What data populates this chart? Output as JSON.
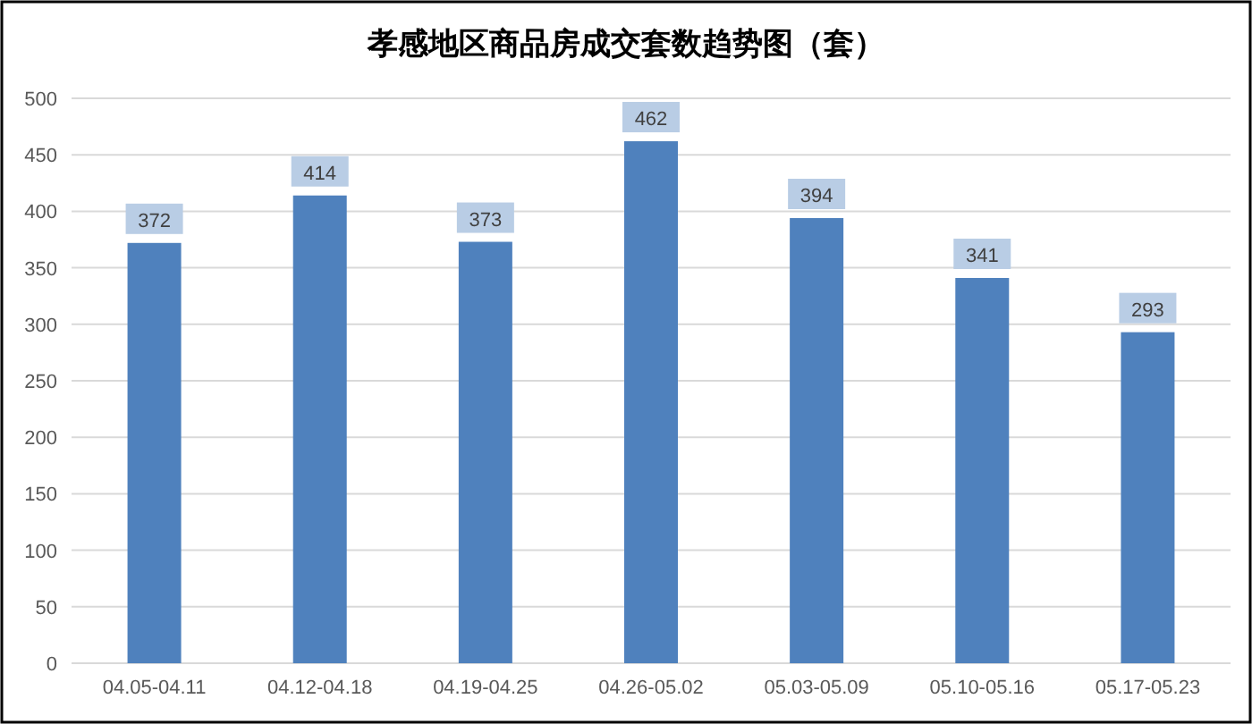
{
  "chart_data": {
    "type": "bar",
    "title": "孝感地区商品房成交套数趋势图（套）",
    "categories": [
      "04.05-04.11",
      "04.12-04.18",
      "04.19-04.25",
      "04.26-05.02",
      "05.03-05.09",
      "05.10-05.16",
      "05.17-05.23"
    ],
    "values": [
      372,
      414,
      373,
      462,
      394,
      341,
      293
    ],
    "color": "#4f81bd",
    "ylim": [
      0,
      500
    ],
    "yticks": [
      0,
      50,
      100,
      150,
      200,
      250,
      300,
      350,
      400,
      450,
      500
    ],
    "grid": "y",
    "data_labels": true
  }
}
